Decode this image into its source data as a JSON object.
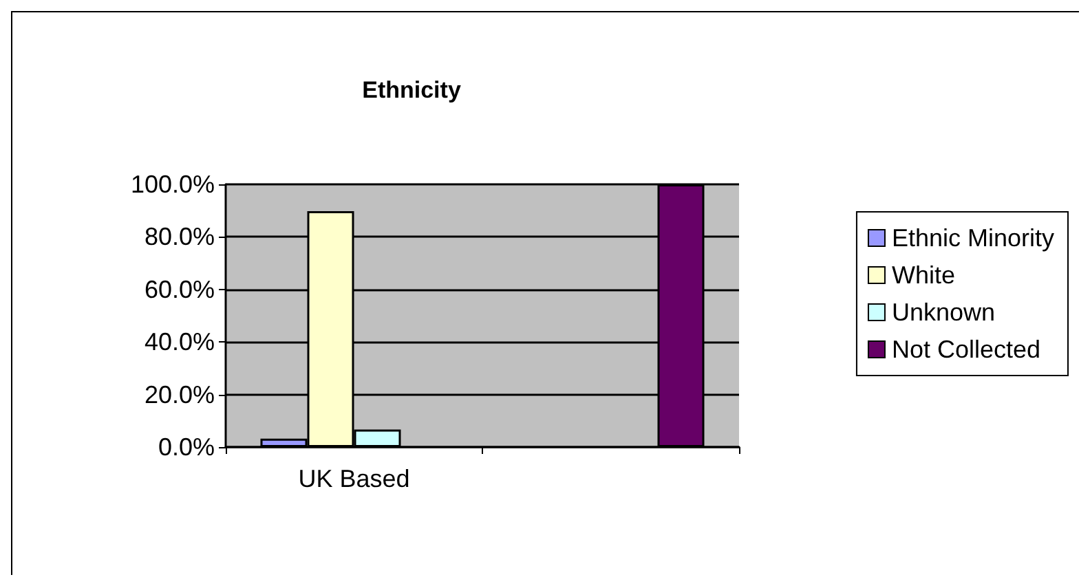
{
  "chart_data": {
    "type": "bar",
    "title": "Ethnicity",
    "categories": [
      "UK Based",
      null
    ],
    "series": [
      {
        "name": "Ethnic Minority",
        "color": "#9999ff",
        "values": [
          3.2,
          null
        ]
      },
      {
        "name": "White",
        "color": "#ffffcc",
        "values": [
          89.8,
          null
        ]
      },
      {
        "name": "Unknown",
        "color": "#ccffff",
        "values": [
          6.7,
          null
        ]
      },
      {
        "name": "Not Collected",
        "color": "#660066",
        "values": [
          null,
          100
        ]
      }
    ],
    "ylim": [
      0,
      100
    ],
    "yticks": [
      {
        "value": 0,
        "label": "0.0%"
      },
      {
        "value": 20,
        "label": "20.0%"
      },
      {
        "value": 40,
        "label": "40.0%"
      },
      {
        "value": 60,
        "label": "60.0%"
      },
      {
        "value": 80,
        "label": "80.0%"
      },
      {
        "value": 100,
        "label": "100.0%"
      }
    ],
    "grid": "y",
    "legend": "right"
  }
}
